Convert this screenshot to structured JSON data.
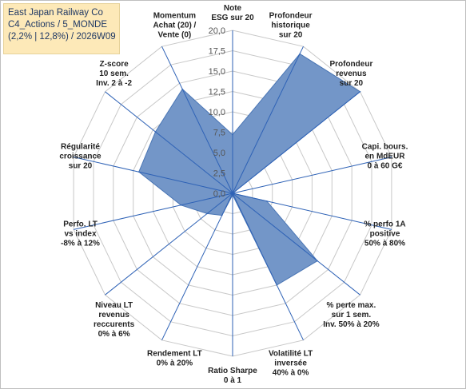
{
  "header": {
    "line1": "East Japan Railway Co",
    "line2": "C4_Actions / 5_MONDE",
    "line3": "(2,2% | 12,8%) / 2026W09"
  },
  "colors": {
    "fill": "#7396c8",
    "stroke": "#4a76b5",
    "grid": "#c8c8c8",
    "axis": "#2e62b6",
    "title_bg": "#fde9b8"
  },
  "chart_data": {
    "type": "radar",
    "title": "",
    "rmin": 0,
    "rmax": 20,
    "ticks": [
      "0,0",
      "2,5",
      "5,0",
      "7,5",
      "10,0",
      "12,5",
      "15,0",
      "17,5",
      "20,0"
    ],
    "axes": [
      [
        "Note",
        "ESG sur 20"
      ],
      [
        "Profondeur",
        "historique",
        "sur 20"
      ],
      [
        "Profondeur",
        "revenus",
        "sur 20"
      ],
      [
        "Capi. bours.",
        "en MdEUR",
        "0 à 60 G€"
      ],
      [
        "% perfo 1A",
        "positive",
        "50% à 80%"
      ],
      [
        "% perte max.",
        "sur 1 sem.",
        "Inv. 50% à 20%"
      ],
      [
        "Volatilité LT",
        "inversée",
        "40% à 0%"
      ],
      [
        "Ratio Sharpe",
        "0 à 1"
      ],
      [
        "Rendement LT",
        "0% à 20%"
      ],
      [
        "Niveau LT",
        "revenus",
        "reccurents",
        "0% à 6%"
      ],
      [
        "Perfo. LT",
        "vs index",
        "-8% à 12%"
      ],
      [
        "Régularité",
        "croissance",
        "sur 20"
      ],
      [
        "Z-score",
        "10 sem.",
        "Inv. 2 à -2"
      ],
      [
        "Momentum",
        "Achat (20) /",
        "Vente (0)"
      ]
    ],
    "series": [
      {
        "values": [
          7.2,
          19.0,
          20.0,
          0.0,
          4.3,
          13.3,
          12.5,
          0.2,
          3.0,
          4.0,
          6.5,
          11.8,
          12.1,
          14.2
        ]
      }
    ]
  }
}
